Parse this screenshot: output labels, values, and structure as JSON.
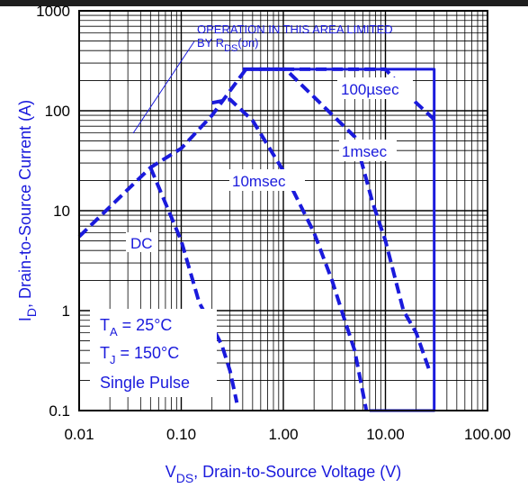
{
  "chart_data": {
    "type": "line",
    "xscale": "log",
    "yscale": "log",
    "xlim": [
      0.01,
      100
    ],
    "ylim": [
      0.1,
      1000
    ],
    "grid": true,
    "x_tick_labels": [
      "0.01",
      "0.10",
      "1.00",
      "10.00",
      "100.00"
    ],
    "y_tick_labels": [
      "0.1",
      "1",
      "10",
      "100",
      "1000"
    ],
    "xlabel": {
      "main": "V",
      "sub": "DS",
      "rest": ", Drain-to-Source Voltage (V)"
    },
    "ylabel": {
      "main": "I",
      "sub": "D",
      "rest": ", Drain-to-Source Current (A)"
    },
    "annotations": {
      "limit_line1": "OPERATION IN THIS AREA LIMITED",
      "limit_line2_prefix": "BY R",
      "limit_line2_sub": "DS",
      "limit_line2_suffix": "(on)",
      "conditions": [
        {
          "main": "T",
          "sub": "A",
          "rest": " = 25°C"
        },
        {
          "main": "T",
          "sub": "J",
          "rest": " = 150°C"
        },
        {
          "main": "Single Pulse",
          "sub": "",
          "rest": ""
        }
      ]
    },
    "series": [
      {
        "name": "100µsec",
        "style": "dashed",
        "x": [
          0.01,
          0.05,
          0.1,
          0.2,
          0.43,
          1.0,
          10,
          20,
          30
        ],
        "y": [
          5.5,
          27,
          42,
          90,
          260,
          260,
          260,
          120,
          82
        ]
      },
      {
        "name": "1msec",
        "style": "dashed",
        "x": [
          0.4,
          1.05,
          5,
          7.5,
          10,
          15,
          20,
          27
        ],
        "y": [
          260,
          260,
          55,
          12,
          5,
          1,
          0.6,
          0.25
        ]
      },
      {
        "name": "10msec",
        "style": "dashed",
        "x": [
          0.2,
          0.3,
          0.5,
          1,
          2,
          3,
          4,
          5,
          6.5
        ],
        "y": [
          120,
          130,
          80,
          25,
          6,
          2,
          0.8,
          0.4,
          0.1
        ]
      },
      {
        "name": "DC",
        "style": "dashed",
        "x": [
          0.05,
          0.1,
          0.15,
          0.2,
          0.25,
          0.3,
          0.35
        ],
        "y": [
          27,
          5,
          1.2,
          0.7,
          0.45,
          0.25,
          0.12
        ]
      },
      {
        "name": "",
        "style": "solid",
        "x": [
          0.43,
          30,
          30,
          7
        ],
        "y": [
          260,
          260,
          0.1,
          0.1
        ]
      }
    ]
  }
}
